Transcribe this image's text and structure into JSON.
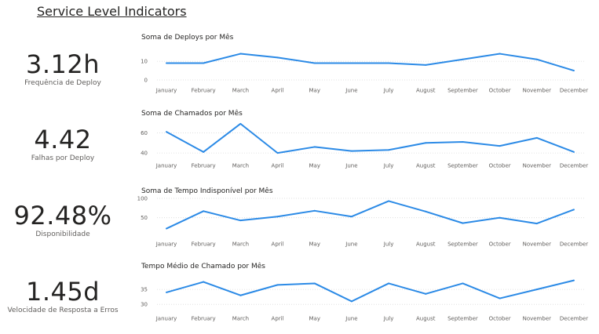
{
  "page": {
    "title": "Service Level Indicators"
  },
  "kpis": [
    {
      "value": "3.12h",
      "label": "Frequência de Deploy"
    },
    {
      "value": "4.42",
      "label": "Falhas por Deploy"
    },
    {
      "value": "92.48%",
      "label": "Disponibilidade"
    },
    {
      "value": "1.45d",
      "label": "Velocidade de Resposta a Erros"
    }
  ],
  "colors": {
    "line": "#2b8ae6",
    "grid": "#d9d9d9"
  },
  "chart_data": [
    {
      "type": "line",
      "title": "Soma de Deploys por Mês",
      "categories": [
        "January",
        "February",
        "March",
        "April",
        "May",
        "June",
        "July",
        "August",
        "September",
        "October",
        "November",
        "December"
      ],
      "values": [
        9,
        9,
        14,
        12,
        9,
        9,
        9,
        8,
        11,
        14,
        11,
        5
      ],
      "yticks": [
        0,
        10
      ],
      "ylim": [
        0,
        18
      ],
      "grid": true
    },
    {
      "type": "line",
      "title": "Soma de Chamados por Mês",
      "categories": [
        "January",
        "February",
        "March",
        "April",
        "May",
        "June",
        "July",
        "August",
        "September",
        "October",
        "November",
        "December"
      ],
      "values": [
        61,
        41,
        69,
        40,
        46,
        42,
        43,
        50,
        51,
        47,
        55,
        41
      ],
      "yticks": [
        40,
        60
      ],
      "ylim": [
        37,
        72
      ],
      "grid": true
    },
    {
      "type": "line",
      "title": "Soma de Tempo Indisponível por Mês",
      "categories": [
        "January",
        "February",
        "March",
        "April",
        "May",
        "June",
        "July",
        "August",
        "September",
        "October",
        "November",
        "December"
      ],
      "values": [
        22,
        67,
        43,
        53,
        68,
        53,
        93,
        66,
        36,
        50,
        35,
        71
      ],
      "yticks": [
        50,
        100
      ],
      "ylim": [
        15,
        100
      ],
      "grid": true
    },
    {
      "type": "line",
      "title": "Tempo Médio de Chamado por Mês",
      "categories": [
        "January",
        "February",
        "March",
        "April",
        "May",
        "June",
        "July",
        "August",
        "September",
        "October",
        "November",
        "December"
      ],
      "values": [
        34,
        37.5,
        33,
        36.5,
        37,
        31,
        37,
        33.5,
        37,
        32,
        35,
        38
      ],
      "yticks": [
        30,
        35
      ],
      "ylim": [
        29,
        40
      ],
      "grid": true
    }
  ]
}
